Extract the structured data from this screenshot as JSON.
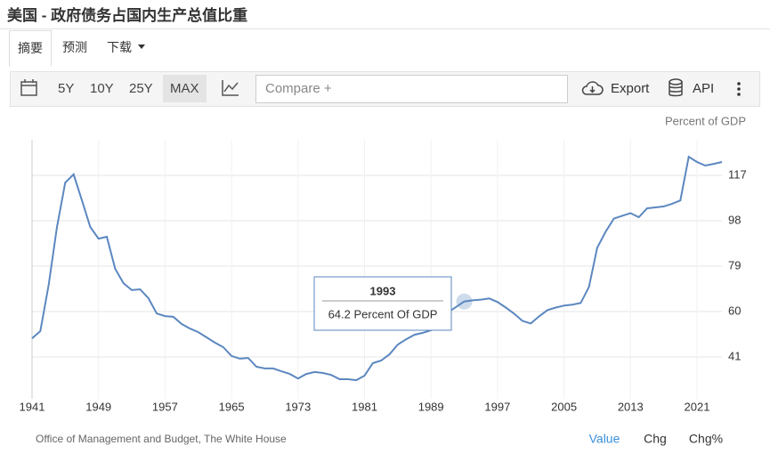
{
  "header": {
    "title": "美国 - 政府债务占国内生产总值比重"
  },
  "tabs": [
    "摘要",
    "预测",
    "下载"
  ],
  "toolbar": {
    "ranges": [
      "5Y",
      "10Y",
      "25Y",
      "MAX"
    ],
    "compare": "Compare +",
    "export": "Export",
    "api": "API"
  },
  "chart_data": {
    "type": "line",
    "unit_label": "Percent of GDP",
    "color": "#5b87c0",
    "x": [
      1941,
      1942,
      1943,
      1944,
      1945,
      1946,
      1947,
      1948,
      1949,
      1950,
      1951,
      1952,
      1953,
      1954,
      1955,
      1956,
      1957,
      1958,
      1959,
      1960,
      1961,
      1962,
      1963,
      1964,
      1965,
      1966,
      1967,
      1968,
      1969,
      1970,
      1971,
      1972,
      1973,
      1974,
      1975,
      1976,
      1977,
      1978,
      1979,
      1980,
      1981,
      1982,
      1983,
      1984,
      1985,
      1986,
      1987,
      1988,
      1989,
      1990,
      1991,
      1992,
      1993,
      1994,
      1995,
      1996,
      1997,
      1998,
      1999,
      2000,
      2001,
      2002,
      2003,
      2004,
      2005,
      2006,
      2007,
      2008,
      2009,
      2010,
      2011,
      2012,
      2013,
      2014,
      2015,
      2016,
      2017,
      2018,
      2019,
      2020,
      2021,
      2022,
      2023,
      2024
    ],
    "values": [
      48.8,
      51.8,
      71.2,
      95.4,
      114,
      117.4,
      106.6,
      95.4,
      90.5,
      91.3,
      77.9,
      71.9,
      69,
      69.3,
      65.6,
      59.2,
      58.1,
      57.8,
      54.8,
      52.9,
      51.4,
      49.2,
      47,
      45.1,
      41.4,
      40.3,
      40.6,
      36.9,
      36.2,
      36.2,
      35,
      33.9,
      32,
      33.9,
      34.7,
      34.3,
      33.5,
      31.7,
      31.7,
      31.3,
      33.2,
      38.4,
      39.5,
      42.1,
      46.2,
      48.4,
      50.3,
      51.1,
      52.2,
      55.5,
      59.6,
      61.9,
      64.2,
      64.7,
      65,
      65.5,
      64,
      61.7,
      59.1,
      56.1,
      55,
      58,
      60.6,
      61.7,
      62.5,
      62.9,
      63.6,
      70.3,
      86.7,
      93.4,
      98.9,
      100.1,
      101.2,
      99.5,
      103.2,
      103.6,
      104,
      105.1,
      106.5,
      124.8,
      122.6,
      121.1,
      121.8,
      122.6
    ],
    "xlim": [
      1941,
      2024
    ],
    "xticks": [
      1941,
      1949,
      1957,
      1965,
      1973,
      1981,
      1989,
      1997,
      2005,
      2013,
      2021
    ],
    "ylim": [
      23.5,
      131.9
    ],
    "yticks": [
      41,
      60,
      79,
      98,
      117
    ],
    "grid": true,
    "tooltip": {
      "title": "1993",
      "text": "64.2 Percent Of GDP"
    },
    "source": "Office of Management and Budget, The White House"
  },
  "footer": {
    "views": [
      "Value",
      "Chg",
      "Chg%"
    ]
  }
}
